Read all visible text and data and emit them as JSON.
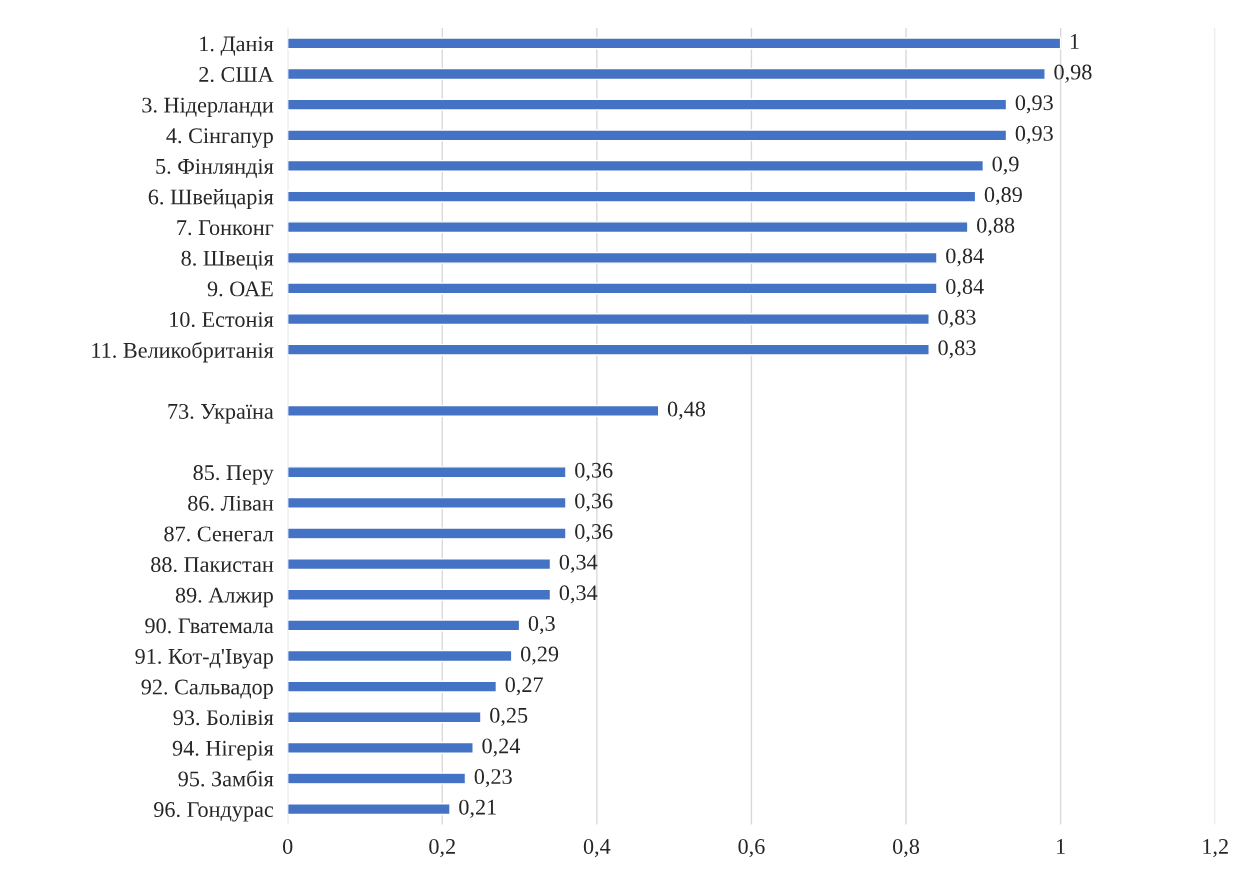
{
  "chart_data": {
    "type": "bar",
    "orientation": "horizontal",
    "categories": [
      "1. Данія",
      "2. США",
      "3. Нідерланди",
      "4. Сінгапур",
      "5. Фінляндія",
      "6. Швейцарія",
      "7. Гонконг",
      "8. Швеція",
      "9. ОАЕ",
      "10. Естонія",
      "11. Великобританія",
      null,
      "73. Україна",
      null,
      "85. Перу",
      "86. Ліван",
      "87. Сенегал",
      "88. Пакистан",
      "89. Алжир",
      "90. Гватемала",
      "91. Кот-д'Івуар",
      "92. Сальвадор",
      "93. Болівія",
      "94. Нігерія",
      "95. Замбія",
      "96. Гондурас"
    ],
    "series": [
      {
        "color": "#4472c4",
        "values": [
          1,
          0.98,
          0.93,
          0.93,
          0.9,
          0.89,
          0.88,
          0.84,
          0.84,
          0.83,
          0.83,
          null,
          0.48,
          null,
          0.36,
          0.36,
          0.36,
          0.34,
          0.34,
          0.3,
          0.29,
          0.27,
          0.25,
          0.24,
          0.23,
          0.21
        ],
        "value_labels": [
          "1",
          "0,98",
          "0,93",
          "0,93",
          "0,9",
          "0,89",
          "0,88",
          "0,84",
          "0,84",
          "0,83",
          "0,83",
          null,
          "0,48",
          null,
          "0,36",
          "0,36",
          "0,36",
          "0,34",
          "0,34",
          "0,3",
          "0,29",
          "0,27",
          "0,25",
          "0,24",
          "0,23",
          "0,21"
        ]
      }
    ],
    "xlim": [
      0,
      1.2
    ],
    "xticks": [
      0,
      {
        "value": 0.2,
        "label": "0,2"
      },
      {
        "value": 0.4,
        "label": "0,4"
      },
      {
        "value": 0.6,
        "label": "0,6"
      },
      {
        "value": 0.8,
        "label": "0,8"
      },
      1,
      {
        "value": 1.2,
        "label": "1,2"
      }
    ],
    "grid": "x",
    "legend": false
  }
}
